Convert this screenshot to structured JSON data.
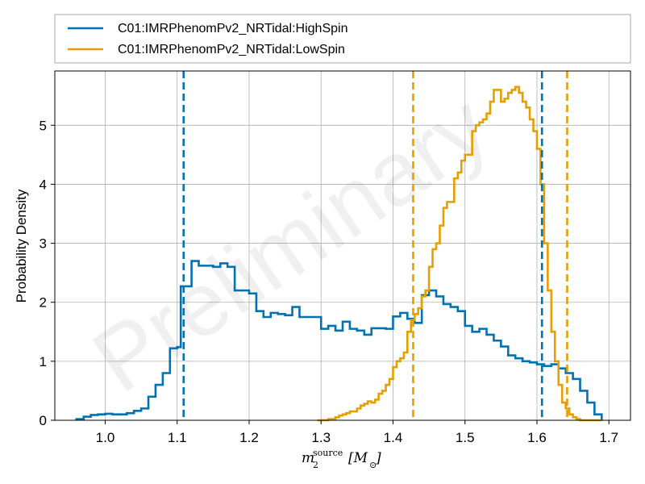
{
  "chart_data": {
    "type": "line",
    "xlabel_base": "m",
    "xlabel_sub": "2",
    "xlabel_sup": "source",
    "xlabel_unit": "[M",
    "xlabel_unit_sub": "⊙",
    "xlabel_unit_close": "]",
    "ylabel": "Probability Density",
    "xlim": [
      0.93,
      1.73
    ],
    "ylim": [
      0,
      5.92
    ],
    "xticks": [
      1.0,
      1.1,
      1.2,
      1.3,
      1.4,
      1.5,
      1.6,
      1.7
    ],
    "xtick_labels": [
      "1.0",
      "1.1",
      "1.2",
      "1.3",
      "1.4",
      "1.5",
      "1.6",
      "1.7"
    ],
    "yticks": [
      0,
      1,
      2,
      3,
      4,
      5
    ],
    "ytick_labels": [
      "0",
      "1",
      "2",
      "3",
      "4",
      "5"
    ],
    "grid": true,
    "legend_position": "top",
    "watermark": "Preliminary",
    "series": [
      {
        "name": "C01:IMRPhenomPv2_NRTidal:HighSpin",
        "color": "#0072b2",
        "bins": [
          0.96,
          0.97,
          0.98,
          0.99,
          1.0,
          1.01,
          1.02,
          1.03,
          1.04,
          1.05,
          1.06,
          1.07,
          1.08,
          1.09,
          1.1,
          1.105,
          1.11,
          1.12,
          1.13,
          1.14,
          1.15,
          1.16,
          1.17,
          1.18,
          1.19,
          1.2,
          1.21,
          1.22,
          1.23,
          1.24,
          1.25,
          1.26,
          1.27,
          1.28,
          1.29,
          1.3,
          1.31,
          1.32,
          1.33,
          1.34,
          1.35,
          1.36,
          1.37,
          1.38,
          1.39,
          1.4,
          1.41,
          1.42,
          1.43,
          1.44,
          1.45,
          1.46,
          1.47,
          1.48,
          1.49,
          1.5,
          1.51,
          1.52,
          1.53,
          1.54,
          1.55,
          1.56,
          1.57,
          1.58,
          1.59,
          1.6,
          1.61,
          1.62,
          1.63,
          1.64,
          1.65,
          1.66,
          1.67,
          1.68,
          1.69
        ],
        "density": [
          0.02,
          0.06,
          0.09,
          0.1,
          0.11,
          0.1,
          0.1,
          0.12,
          0.16,
          0.2,
          0.4,
          0.6,
          0.8,
          1.22,
          1.24,
          2.27,
          2.27,
          2.7,
          2.62,
          2.62,
          2.6,
          2.66,
          2.6,
          2.2,
          2.2,
          2.15,
          1.85,
          1.75,
          1.82,
          1.8,
          1.78,
          1.92,
          1.75,
          1.75,
          1.75,
          1.55,
          1.6,
          1.52,
          1.67,
          1.55,
          1.52,
          1.45,
          1.56,
          1.56,
          1.55,
          1.76,
          1.82,
          1.72,
          1.65,
          2.12,
          2.2,
          2.1,
          1.97,
          1.92,
          1.85,
          1.6,
          1.5,
          1.55,
          1.45,
          1.35,
          1.25,
          1.1,
          1.05,
          1.0,
          0.98,
          0.95,
          0.92,
          0.95,
          0.88,
          0.8,
          0.7,
          0.5,
          0.3,
          0.1
        ]
      },
      {
        "name": "C01:IMRPhenomPv2_NRTidal:LowSpin",
        "color": "#e69f00",
        "bins": [
          1.295,
          1.3,
          1.305,
          1.31,
          1.315,
          1.32,
          1.325,
          1.33,
          1.335,
          1.34,
          1.345,
          1.35,
          1.355,
          1.36,
          1.365,
          1.37,
          1.375,
          1.38,
          1.385,
          1.39,
          1.395,
          1.4,
          1.405,
          1.41,
          1.415,
          1.42,
          1.425,
          1.43,
          1.435,
          1.44,
          1.445,
          1.45,
          1.455,
          1.46,
          1.465,
          1.47,
          1.475,
          1.48,
          1.485,
          1.49,
          1.495,
          1.5,
          1.505,
          1.51,
          1.515,
          1.52,
          1.525,
          1.53,
          1.535,
          1.54,
          1.545,
          1.55,
          1.555,
          1.56,
          1.565,
          1.57,
          1.575,
          1.58,
          1.585,
          1.59,
          1.595,
          1.6,
          1.605,
          1.61,
          1.615,
          1.62,
          1.625,
          1.63,
          1.635,
          1.64,
          1.645,
          1.65,
          1.655,
          1.66,
          1.665,
          1.67,
          1.675,
          1.68,
          1.685,
          1.69
        ],
        "density": [
          0.0,
          0.0,
          0.0,
          0.02,
          0.02,
          0.05,
          0.08,
          0.1,
          0.12,
          0.15,
          0.15,
          0.2,
          0.25,
          0.28,
          0.32,
          0.3,
          0.35,
          0.45,
          0.5,
          0.6,
          0.7,
          0.9,
          1.0,
          1.05,
          1.15,
          1.5,
          1.7,
          1.8,
          1.9,
          2.1,
          2.2,
          2.6,
          2.9,
          3.0,
          3.3,
          3.6,
          3.7,
          3.7,
          4.1,
          4.2,
          4.4,
          4.5,
          4.5,
          4.9,
          5.0,
          5.05,
          5.1,
          5.2,
          5.4,
          5.6,
          5.6,
          5.4,
          5.45,
          5.55,
          5.6,
          5.65,
          5.55,
          5.4,
          5.3,
          5.1,
          4.9,
          4.6,
          4.0,
          3.0,
          2.2,
          1.5,
          1.0,
          0.6,
          0.3,
          0.2,
          0.1,
          0.05,
          0.02,
          0.0,
          0.0,
          0.0,
          0.0,
          0.0,
          0.0
        ]
      }
    ],
    "vlines": [
      {
        "x": 1.109,
        "color": "#0072b2"
      },
      {
        "x": 1.607,
        "color": "#0072b2"
      },
      {
        "x": 1.428,
        "color": "#e69f00"
      },
      {
        "x": 1.642,
        "color": "#e69f00"
      }
    ]
  }
}
